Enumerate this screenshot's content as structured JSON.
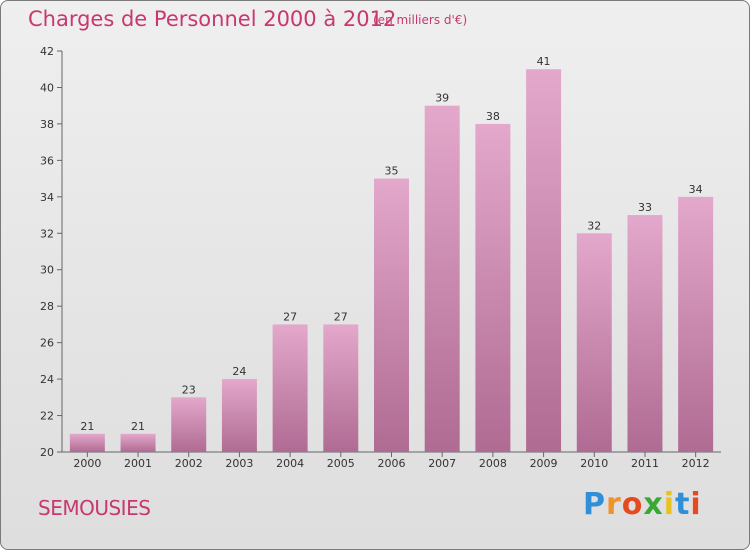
{
  "header": {
    "title": "Charges de Personnel 2000 à 2012",
    "subtitle": "(en milliers d'€)"
  },
  "footer": {
    "commune": "SEMOUSIES",
    "logo_letters": [
      "P",
      "r",
      "o",
      "x",
      "i",
      "t",
      "i"
    ]
  },
  "colors": {
    "title": "#c8376f",
    "bar_top": "#e3a8cb",
    "bar_bottom": "#b06b93",
    "logo": [
      "#2f8fd8",
      "#f0932b",
      "#e84a1f",
      "#3aa835",
      "#e8c21f",
      "#2f8fd8",
      "#e84a1f"
    ]
  },
  "chart_data": {
    "type": "bar",
    "title": "Charges de Personnel 2000 à 2012",
    "subtitle": "(en milliers d'€)",
    "categories": [
      "2000",
      "2001",
      "2002",
      "2003",
      "2004",
      "2005",
      "2006",
      "2007",
      "2008",
      "2009",
      "2010",
      "2011",
      "2012"
    ],
    "values": [
      21,
      21,
      23,
      24,
      27,
      27,
      35,
      39,
      38,
      41,
      32,
      33,
      34
    ],
    "ylim": [
      20,
      42
    ],
    "yticks": [
      20,
      22,
      24,
      26,
      28,
      30,
      32,
      34,
      36,
      38,
      40,
      42
    ],
    "grid": false,
    "xlabel": "",
    "ylabel": ""
  }
}
